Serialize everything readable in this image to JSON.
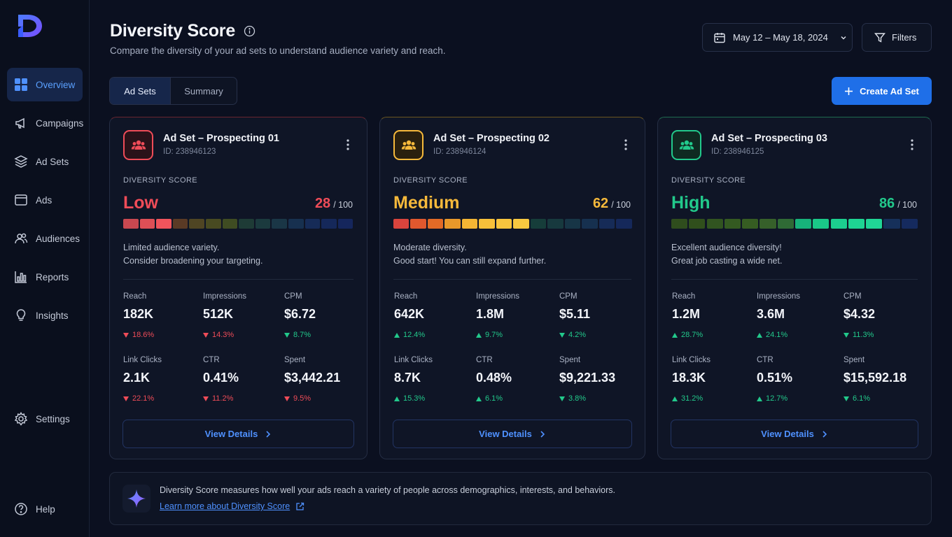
{
  "sidebar": {
    "logo": "D",
    "items": [
      {
        "label": "Overview",
        "icon": "grid-icon",
        "active": true
      },
      {
        "label": "Campaigns",
        "icon": "megaphone-icon"
      },
      {
        "label": "Ad Sets",
        "icon": "layers-icon"
      },
      {
        "label": "Ads",
        "icon": "window-icon"
      },
      {
        "label": "Audiences",
        "icon": "users-icon"
      },
      {
        "label": "Reports",
        "icon": "bar-chart-icon"
      },
      {
        "label": "Insights",
        "icon": "lightbulb-icon"
      }
    ],
    "settings": "Settings",
    "help": "Help"
  },
  "header": {
    "title": "Diversity Score",
    "subtitle": "Compare the diversity of your ad sets to understand audience variety and reach.",
    "date_range": "May 12 – May 18, 2024",
    "filters": "Filters",
    "tabs": [
      "Ad Sets",
      "Summary"
    ],
    "create": "Create Ad Set"
  },
  "colors": {
    "accent": "#1f6fe8",
    "low": "#ef4c58",
    "medium": "#f6b93b",
    "high": "#22c98b",
    "down": "#ef4c58",
    "up": "#22c98b"
  },
  "cards": [
    {
      "name": "Ad Set – Prospecting 01",
      "id": "ID: 238946123",
      "score_label": "DIVERSITY SCORE",
      "level": "Low",
      "score": "28",
      "out_of": "/ 100",
      "filled_segments": 3,
      "desc1": "Limited audience variety.",
      "desc2": "Consider broadening your targeting.",
      "metrics": [
        {
          "label": "Reach",
          "value": "182K",
          "delta": "18.6%",
          "dir": "down"
        },
        {
          "label": "Impressions",
          "value": "512K",
          "delta": "14.3%",
          "dir": "down"
        },
        {
          "label": "CPM",
          "value": "$6.72",
          "delta": "8.7%",
          "dir": "down-good"
        },
        {
          "label": "Link Clicks",
          "value": "2.1K",
          "delta": "22.1%",
          "dir": "down"
        },
        {
          "label": "CTR",
          "value": "0.41%",
          "delta": "11.2%",
          "dir": "down"
        },
        {
          "label": "Spent",
          "value": "$3,442.21",
          "delta": "9.5%",
          "dir": "down"
        }
      ],
      "cta": "View Details"
    },
    {
      "name": "Ad Set – Prospecting 02",
      "id": "ID: 238946124",
      "score_label": "DIVERSITY SCORE",
      "level": "Medium",
      "score": "62",
      "out_of": "/ 100",
      "filled_segments": 8,
      "desc1": "Moderate diversity.",
      "desc2": "Good start! You can still expand further.",
      "metrics": [
        {
          "label": "Reach",
          "value": "642K",
          "delta": "12.4%",
          "dir": "up"
        },
        {
          "label": "Impressions",
          "value": "1.8M",
          "delta": "9.7%",
          "dir": "up"
        },
        {
          "label": "CPM",
          "value": "$5.11",
          "delta": "4.2%",
          "dir": "down-good"
        },
        {
          "label": "Link Clicks",
          "value": "8.7K",
          "delta": "15.3%",
          "dir": "up"
        },
        {
          "label": "CTR",
          "value": "0.48%",
          "delta": "6.1%",
          "dir": "up"
        },
        {
          "label": "Spent",
          "value": "$9,221.33",
          "delta": "3.8%",
          "dir": "down-good"
        }
      ],
      "cta": "View Details"
    },
    {
      "name": "Ad Set – Prospecting 03",
      "id": "ID: 238946125",
      "score_label": "DIVERSITY SCORE",
      "level": "High",
      "score": "86",
      "out_of": "/ 100",
      "filled_segments": 12,
      "desc1": "Excellent audience diversity!",
      "desc2": "Great job casting a wide net.",
      "metrics": [
        {
          "label": "Reach",
          "value": "1.2M",
          "delta": "28.7%",
          "dir": "up"
        },
        {
          "label": "Impressions",
          "value": "3.6M",
          "delta": "24.1%",
          "dir": "up"
        },
        {
          "label": "CPM",
          "value": "$4.32",
          "delta": "11.3%",
          "dir": "down-good"
        },
        {
          "label": "Link Clicks",
          "value": "18.3K",
          "delta": "31.2%",
          "dir": "up"
        },
        {
          "label": "CTR",
          "value": "0.51%",
          "delta": "12.7%",
          "dir": "up"
        },
        {
          "label": "Spent",
          "value": "$15,592.18",
          "delta": "6.1%",
          "dir": "down-good"
        }
      ],
      "cta": "View Details"
    }
  ],
  "info": {
    "text": "Diversity Score measures how well your ads reach a variety of people across demographics, interests, and behaviors.",
    "link": "Learn more about Diversity Score"
  }
}
